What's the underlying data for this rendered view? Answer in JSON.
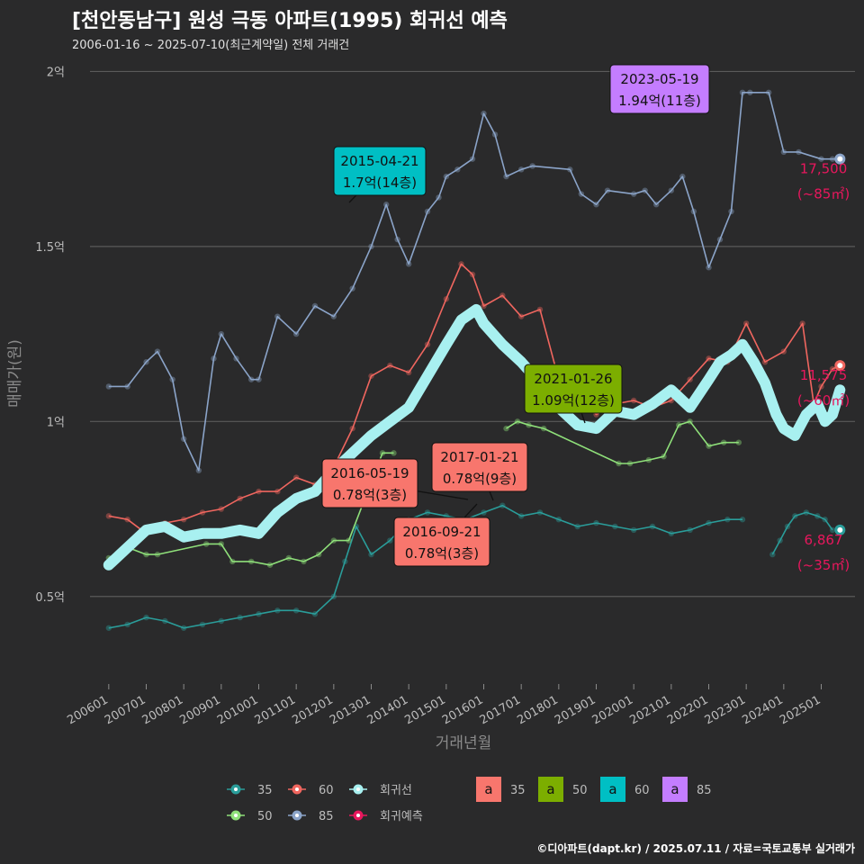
{
  "chart_data": {
    "type": "line",
    "title": "[천안동남구] 원성 극동 아파트(1995) 회귀선 예측",
    "subtitle": "2006-01-16 ~ 2025-07-10(최근계약일) 전체 거래건",
    "xlabel": "거래년월",
    "ylabel": "매매가(원)",
    "ylim": [
      0.25,
      2.05
    ],
    "xlim": [
      2005.5,
      2025.9
    ],
    "y_ticks": [
      {
        "value": 0.5,
        "label": "0.5억"
      },
      {
        "value": 1.0,
        "label": "1억"
      },
      {
        "value": 1.5,
        "label": "1.5억"
      },
      {
        "value": 2.0,
        "label": "2억"
      }
    ],
    "x_ticks": [
      {
        "value": 2006,
        "label": "200601"
      },
      {
        "value": 2007,
        "label": "200701"
      },
      {
        "value": 2008,
        "label": "200801"
      },
      {
        "value": 2009,
        "label": "200901"
      },
      {
        "value": 2010,
        "label": "201001"
      },
      {
        "value": 2011,
        "label": "201101"
      },
      {
        "value": 2012,
        "label": "201201"
      },
      {
        "value": 2013,
        "label": "201301"
      },
      {
        "value": 2014,
        "label": "201401"
      },
      {
        "value": 2015,
        "label": "201501"
      },
      {
        "value": 2016,
        "label": "201601"
      },
      {
        "value": 2017,
        "label": "201701"
      },
      {
        "value": 2018,
        "label": "201801"
      },
      {
        "value": 2019,
        "label": "201901"
      },
      {
        "value": 2020,
        "label": "202001"
      },
      {
        "value": 2021,
        "label": "202101"
      },
      {
        "value": 2022,
        "label": "202201"
      },
      {
        "value": 2023,
        "label": "202301"
      },
      {
        "value": 2024,
        "label": "202401"
      },
      {
        "value": 2025,
        "label": "202501"
      }
    ],
    "series": [
      {
        "name": "35",
        "color": "#2a9d9a",
        "x": [
          2006.0,
          2006.5,
          2007.0,
          2007.5,
          2008.0,
          2008.5,
          2009.0,
          2009.5,
          2010.0,
          2010.5,
          2011.0,
          2011.5,
          2012.0,
          2012.3,
          2012.6,
          2013.0,
          2013.5,
          2014.0,
          2014.5,
          2015.0,
          2015.5,
          2016.0,
          2016.5,
          2017.0,
          2017.5,
          2018.0,
          2018.5,
          2019.0,
          2019.5,
          2020.0,
          2020.5,
          2021.0,
          2021.5,
          2022.0,
          2022.5,
          2022.9
        ],
        "values": [
          0.41,
          0.42,
          0.44,
          0.43,
          0.41,
          0.42,
          0.43,
          0.44,
          0.45,
          0.46,
          0.46,
          0.45,
          0.5,
          0.6,
          0.7,
          0.62,
          0.66,
          0.72,
          0.74,
          0.73,
          0.72,
          0.74,
          0.76,
          0.73,
          0.74,
          0.72,
          0.7,
          0.71,
          0.7,
          0.69,
          0.7,
          0.68,
          0.69,
          0.71,
          0.72,
          0.72
        ]
      },
      {
        "name": "35-2",
        "color": "#2a9d9a",
        "x": [
          2023.7,
          2023.9,
          2024.1,
          2024.3,
          2024.6,
          2024.9,
          2025.1,
          2025.3
        ],
        "values": [
          0.62,
          0.66,
          0.7,
          0.73,
          0.74,
          0.73,
          0.72,
          0.69
        ]
      },
      {
        "name": "50",
        "color": "#8fe07a",
        "x": [
          2006.0,
          2006.5,
          2007.0,
          2007.3,
          2008.6,
          2009.0,
          2009.3,
          2009.8,
          2010.3,
          2010.8,
          2011.2,
          2011.6,
          2012.0,
          2012.4,
          2013.3,
          2013.6
        ],
        "values": [
          0.61,
          0.64,
          0.62,
          0.62,
          0.65,
          0.65,
          0.6,
          0.6,
          0.59,
          0.61,
          0.6,
          0.62,
          0.66,
          0.66,
          0.91,
          0.91
        ]
      },
      {
        "name": "50-2",
        "color": "#8fe07a",
        "x": [
          2016.6,
          2016.9,
          2017.2,
          2017.6,
          2019.6,
          2019.9,
          2020.4,
          2020.8,
          2021.2,
          2021.5,
          2022.0,
          2022.4,
          2022.8
        ],
        "values": [
          0.98,
          1.0,
          0.99,
          0.98,
          0.88,
          0.88,
          0.89,
          0.9,
          0.99,
          1.0,
          0.93,
          0.94,
          0.94
        ]
      },
      {
        "name": "60",
        "color": "#f0665f",
        "x": [
          2006.0,
          2006.5,
          2007.0,
          2007.5,
          2008.0,
          2008.5,
          2009.0,
          2009.5,
          2010.0,
          2010.5,
          2011.0,
          2011.5,
          2012.0,
          2012.5,
          2013.0,
          2013.5,
          2014.0,
          2014.5,
          2015.0,
          2015.4,
          2015.7,
          2016.0,
          2016.5,
          2017.0,
          2017.5,
          2018.0,
          2018.5,
          2019.0,
          2019.5,
          2020.0,
          2020.5,
          2021.0,
          2021.5,
          2022.0,
          2022.5,
          2023.0,
          2023.5,
          2024.0,
          2024.5,
          2024.8,
          2025.0,
          2025.3,
          2025.5
        ],
        "values": [
          0.73,
          0.72,
          0.68,
          0.71,
          0.72,
          0.74,
          0.75,
          0.78,
          0.8,
          0.8,
          0.84,
          0.82,
          0.87,
          0.98,
          1.13,
          1.16,
          1.14,
          1.22,
          1.35,
          1.45,
          1.42,
          1.33,
          1.36,
          1.3,
          1.32,
          1.12,
          1.08,
          1.02,
          1.05,
          1.06,
          1.04,
          1.06,
          1.12,
          1.18,
          1.17,
          1.28,
          1.17,
          1.2,
          1.28,
          1.05,
          1.1,
          1.15,
          1.16
        ]
      },
      {
        "name": "85",
        "color": "#8ba4c9",
        "x": [
          2006.0,
          2006.5,
          2007.0,
          2007.3,
          2007.7,
          2008.0,
          2008.4,
          2008.8,
          2009.0,
          2009.4,
          2009.8,
          2010.0,
          2010.5,
          2011.0,
          2011.5,
          2012.0,
          2012.5,
          2013.0,
          2013.4,
          2013.7,
          2014.0,
          2014.5,
          2014.8,
          2015.0,
          2015.3,
          2015.7,
          2016.0,
          2016.3,
          2016.6,
          2017.0,
          2017.3,
          2018.3,
          2018.6,
          2019.0,
          2019.3,
          2020.0,
          2020.3,
          2020.6,
          2021.0,
          2021.3,
          2021.6,
          2022.0,
          2022.3,
          2022.6,
          2022.9,
          2023.1,
          2023.6,
          2024.0,
          2024.4,
          2025.0,
          2025.3,
          2025.5
        ],
        "values": [
          1.1,
          1.1,
          1.17,
          1.2,
          1.12,
          0.95,
          0.86,
          1.18,
          1.25,
          1.18,
          1.12,
          1.12,
          1.3,
          1.25,
          1.33,
          1.3,
          1.38,
          1.5,
          1.62,
          1.52,
          1.45,
          1.6,
          1.64,
          1.7,
          1.72,
          1.75,
          1.88,
          1.82,
          1.7,
          1.72,
          1.73,
          1.72,
          1.65,
          1.62,
          1.66,
          1.65,
          1.66,
          1.62,
          1.66,
          1.7,
          1.6,
          1.44,
          1.52,
          1.6,
          1.94,
          1.94,
          1.94,
          1.77,
          1.77,
          1.75,
          1.75,
          1.75
        ]
      },
      {
        "name": "회귀선",
        "color": "#a8f0f0",
        "x": [
          2006.0,
          2006.5,
          2007.0,
          2007.5,
          2008.0,
          2008.5,
          2009.0,
          2009.5,
          2010.0,
          2010.5,
          2011.0,
          2011.5,
          2012.0,
          2012.5,
          2013.0,
          2013.5,
          2014.0,
          2014.5,
          2015.0,
          2015.4,
          2015.8,
          2016.0,
          2016.5,
          2017.0,
          2017.5,
          2018.0,
          2018.5,
          2019.0,
          2019.5,
          2020.0,
          2020.5,
          2021.0,
          2021.5,
          2022.0,
          2022.3,
          2022.6,
          2022.9,
          2023.2,
          2023.5,
          2023.8,
          2024.0,
          2024.3,
          2024.6,
          2024.9,
          2025.1,
          2025.3,
          2025.5
        ],
        "values": [
          0.59,
          0.64,
          0.69,
          0.7,
          0.67,
          0.68,
          0.68,
          0.69,
          0.68,
          0.74,
          0.78,
          0.8,
          0.86,
          0.91,
          0.96,
          1.0,
          1.04,
          1.13,
          1.22,
          1.29,
          1.32,
          1.28,
          1.22,
          1.17,
          1.11,
          1.04,
          0.99,
          0.98,
          1.03,
          1.02,
          1.05,
          1.09,
          1.04,
          1.12,
          1.17,
          1.19,
          1.22,
          1.17,
          1.11,
          1.02,
          0.98,
          0.96,
          1.02,
          1.05,
          1.0,
          1.02,
          1.09
        ]
      }
    ],
    "callouts": [
      {
        "date": "2023-05-19",
        "price": "1.94억(11층)",
        "color": "#c47dff"
      },
      {
        "date": "2015-04-21",
        "price": "1.7억(14층)",
        "color": "#00bfc4"
      },
      {
        "date": "2021-01-26",
        "price": "1.09억(12층)",
        "color": "#7cae00"
      },
      {
        "date": "2016-05-19",
        "price": "0.78억(3층)",
        "color": "#f8766d"
      },
      {
        "date": "2017-01-21",
        "price": "0.78억(9층)",
        "color": "#f8766d"
      },
      {
        "date": "2016-09-21",
        "price": "0.78억(3층)",
        "color": "#f8766d"
      }
    ],
    "end_points": [
      {
        "series": "85",
        "x": 2025.5,
        "y": 1.75,
        "value": "17,500",
        "area": "(~85㎡)"
      },
      {
        "series": "60",
        "x": 2025.5,
        "y": 1.16,
        "value": "11,575",
        "area": "(~60㎡)"
      },
      {
        "series": "35",
        "x": 2025.5,
        "y": 0.69,
        "value": "6,867",
        "area": "(~35㎡)"
      }
    ],
    "legend": {
      "position": "bottom",
      "line_items": [
        {
          "label": "35",
          "color": "#2a9d9a"
        },
        {
          "label": "60",
          "color": "#f0665f"
        },
        {
          "label": "회귀선",
          "color": "#a8f0f0"
        },
        {
          "label": "50",
          "color": "#8fe07a"
        },
        {
          "label": "85",
          "color": "#8ba4c9"
        },
        {
          "label": "회귀예측",
          "color": "#e8175d"
        }
      ],
      "box_items": [
        {
          "letter": "a",
          "label": "35",
          "color": "#f8766d"
        },
        {
          "letter": "a",
          "label": "50",
          "color": "#7cae00"
        },
        {
          "letter": "a",
          "label": "60",
          "color": "#00bfc4"
        },
        {
          "letter": "a",
          "label": "85",
          "color": "#c47dff"
        }
      ]
    },
    "footer": "©디아파트(dapt.kr) / 2025.07.11 / 자료=국토교통부 실거래가"
  }
}
